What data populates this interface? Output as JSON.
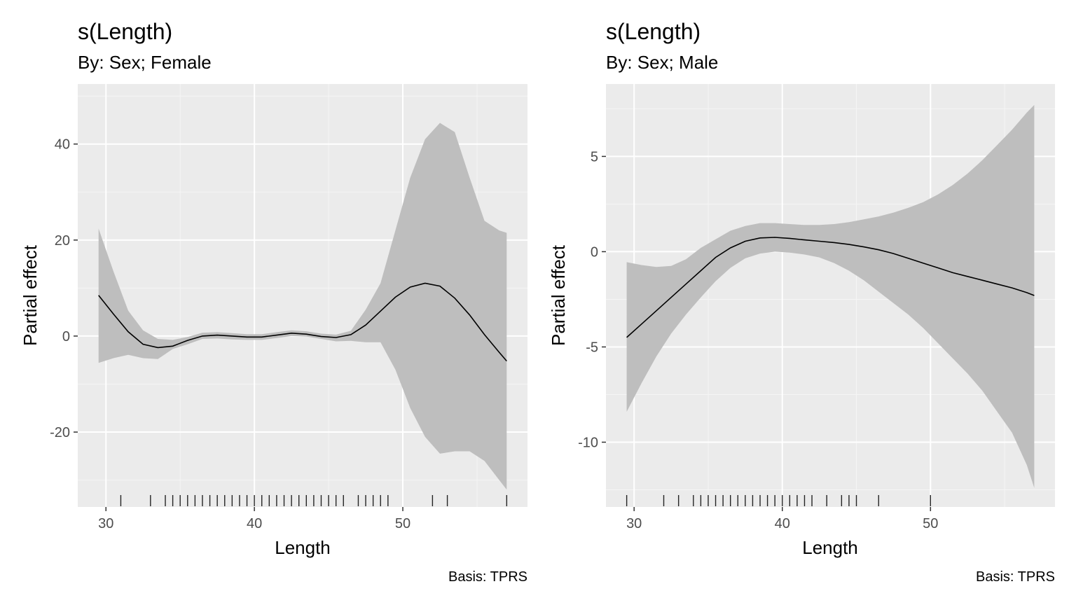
{
  "chart_data": [
    {
      "type": "line",
      "title": "s(Length)",
      "subtitle": "By: Sex; Female",
      "xlabel": "Length",
      "ylabel": "Partial effect",
      "caption": "Basis: TPRS",
      "xlim": [
        28.1,
        58.4
      ],
      "ylim": [
        -35.6,
        52.5
      ],
      "xticks": [
        30,
        40,
        50
      ],
      "xtick_labels": [
        "30",
        "40",
        "50"
      ],
      "yticks": [
        -20,
        0,
        20,
        40
      ],
      "ytick_labels": [
        "-20",
        "0",
        "20",
        "40"
      ],
      "grid": true,
      "series": [
        {
          "x": [
            29.5,
            30.5,
            31.5,
            32.5,
            33.5,
            34.5,
            35.5,
            36.5,
            37.5,
            38.5,
            39.5,
            40.5,
            41.5,
            42.5,
            43.5,
            44.5,
            45.5,
            46.5,
            47.5,
            48.5,
            49.5,
            50.5,
            51.5,
            52.5,
            53.5,
            54.5,
            55.5,
            56.5,
            57.0
          ],
          "fit": [
            8.5,
            4.6,
            0.9,
            -1.7,
            -2.4,
            -2.1,
            -0.9,
            0.0,
            0.2,
            0.0,
            -0.2,
            -0.2,
            0.2,
            0.6,
            0.4,
            -0.1,
            -0.3,
            0.3,
            2.3,
            5.2,
            8.1,
            10.2,
            11.0,
            10.4,
            7.9,
            4.4,
            0.3,
            -3.4,
            -5.2
          ],
          "lower": [
            -5.6,
            -4.6,
            -3.9,
            -4.6,
            -4.8,
            -2.7,
            -1.7,
            -0.6,
            -0.5,
            -0.7,
            -0.8,
            -0.8,
            -0.4,
            0.0,
            -0.1,
            -0.6,
            -1.1,
            -1.0,
            -1.3,
            -1.3,
            -7.0,
            -15.0,
            -21.0,
            -24.5,
            -24.0,
            -24.0,
            -26.0,
            -30.0,
            -32.0
          ],
          "upper": [
            22.4,
            13.5,
            5.3,
            1.2,
            -0.6,
            -0.8,
            -0.2,
            0.7,
            0.8,
            0.6,
            0.4,
            0.4,
            0.8,
            1.2,
            1.0,
            0.5,
            0.3,
            1.1,
            5.5,
            11.0,
            22.0,
            33.0,
            41.0,
            44.4,
            42.5,
            33.0,
            24.0,
            22.0,
            21.5
          ]
        }
      ],
      "rug": [
        31,
        33,
        34,
        34.5,
        35,
        35.5,
        36,
        36.5,
        37,
        37.5,
        38,
        38.5,
        39,
        39.5,
        40,
        40.5,
        41,
        41.5,
        42,
        42.5,
        43,
        43.5,
        44,
        44.5,
        45,
        45.5,
        46,
        47,
        47.5,
        48,
        48.5,
        49,
        52,
        53,
        57
      ],
      "colors": {
        "panel": "#ebebeb",
        "grid_major": "#ffffff",
        "grid_minor": "#f5f5f5",
        "band": "#bebebe",
        "line": "#000000",
        "rug": "#000000"
      }
    },
    {
      "type": "line",
      "title": "s(Length)",
      "subtitle": "By: Sex; Male",
      "xlabel": "Length",
      "ylabel": "Partial effect",
      "caption": "Basis: TPRS",
      "xlim": [
        28.1,
        58.4
      ],
      "ylim": [
        -13.4,
        8.8
      ],
      "xticks": [
        30,
        40,
        50
      ],
      "xtick_labels": [
        "30",
        "40",
        "50"
      ],
      "yticks": [
        -10,
        -5,
        0,
        5
      ],
      "ytick_labels": [
        "-10",
        "-5",
        "0",
        "5"
      ],
      "grid": true,
      "series": [
        {
          "x": [
            29.5,
            30.5,
            31.5,
            32.5,
            33.5,
            34.5,
            35.5,
            36.5,
            37.5,
            38.5,
            39.5,
            40.5,
            41.5,
            42.5,
            43.5,
            44.5,
            45.5,
            46.5,
            47.5,
            48.5,
            49.5,
            50.5,
            51.5,
            52.5,
            53.5,
            54.5,
            55.5,
            56.5,
            57.0
          ],
          "fit": [
            -4.5,
            -3.8,
            -3.1,
            -2.4,
            -1.7,
            -1.0,
            -0.3,
            0.2,
            0.55,
            0.72,
            0.75,
            0.7,
            0.62,
            0.55,
            0.48,
            0.38,
            0.25,
            0.1,
            -0.1,
            -0.35,
            -0.6,
            -0.85,
            -1.1,
            -1.3,
            -1.5,
            -1.7,
            -1.9,
            -2.15,
            -2.3
          ],
          "lower": [
            -8.4,
            -6.9,
            -5.5,
            -4.3,
            -3.3,
            -2.4,
            -1.55,
            -0.85,
            -0.35,
            -0.1,
            0.0,
            -0.05,
            -0.15,
            -0.3,
            -0.6,
            -1.0,
            -1.5,
            -2.1,
            -2.7,
            -3.3,
            -4.0,
            -4.8,
            -5.6,
            -6.4,
            -7.3,
            -8.4,
            -9.5,
            -11.2,
            -12.4
          ],
          "upper": [
            -0.55,
            -0.7,
            -0.8,
            -0.75,
            -0.4,
            0.2,
            0.65,
            1.1,
            1.35,
            1.5,
            1.5,
            1.45,
            1.4,
            1.4,
            1.45,
            1.55,
            1.7,
            1.85,
            2.05,
            2.3,
            2.6,
            3.0,
            3.5,
            4.1,
            4.8,
            5.6,
            6.4,
            7.3,
            7.7
          ]
        }
      ],
      "rug": [
        29.5,
        32,
        33,
        34,
        34.5,
        35,
        35.5,
        36,
        36.5,
        37,
        37.5,
        38,
        38.5,
        39,
        39.5,
        40,
        40.5,
        41,
        41.5,
        42,
        43,
        44,
        44.5,
        45,
        46.5,
        50
      ],
      "colors": {
        "panel": "#ebebeb",
        "grid_major": "#ffffff",
        "grid_minor": "#f5f5f5",
        "band": "#bebebe",
        "line": "#000000",
        "rug": "#000000"
      }
    }
  ]
}
